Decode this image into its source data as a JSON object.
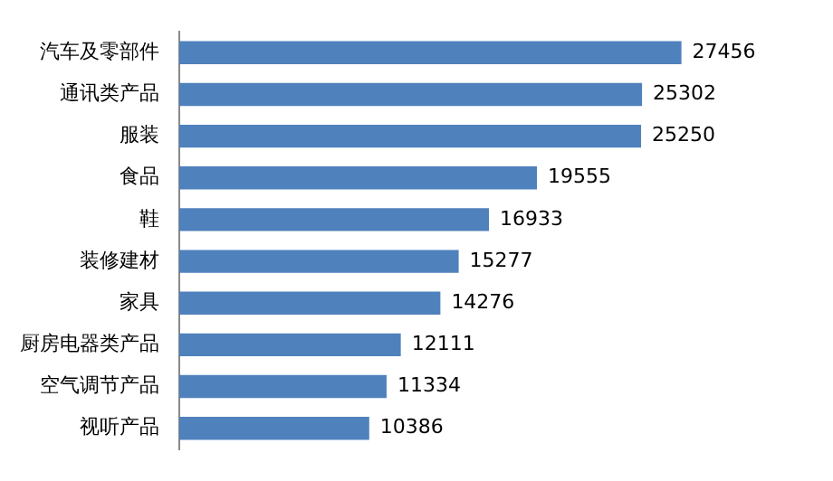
{
  "chart_data": {
    "type": "bar",
    "orientation": "horizontal",
    "categories": [
      "汽车及零部件",
      "通讯类产品",
      "服装",
      "食品",
      "鞋",
      "装修建材",
      "家具",
      "厨房电器类产品",
      "空气调节产品",
      "视听产品"
    ],
    "values": [
      27456,
      25302,
      25250,
      19555,
      16933,
      15277,
      14276,
      12111,
      11334,
      10386
    ],
    "color": "#4f81bd",
    "data_labels": true,
    "tick_labels": "y",
    "legend": false
  }
}
